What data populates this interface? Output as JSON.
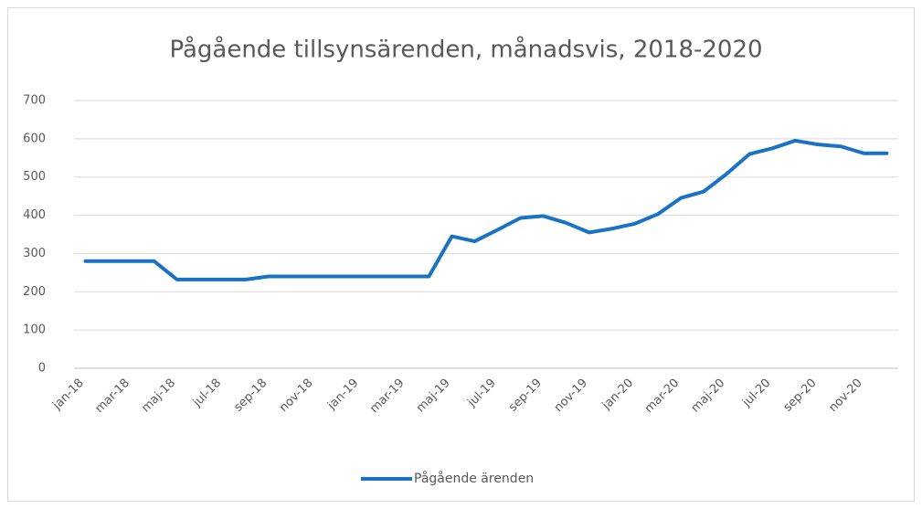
{
  "chart_data": {
    "type": "line",
    "title": "Pågående tillsynsärenden, månadsvis, 2018-2020",
    "categories": [
      "jan-18",
      null,
      "mar-18",
      null,
      "maj-18",
      null,
      "jul-18",
      null,
      "sep-18",
      null,
      "nov-18",
      null,
      "jan-19",
      null,
      "mar-19",
      null,
      "maj-19",
      null,
      "jul-19",
      null,
      "sep-19",
      null,
      "nov-19",
      null,
      "jan-20",
      null,
      "mar-20",
      null,
      "maj-20",
      null,
      "jul-20",
      null,
      "sep-20",
      null,
      "nov-20",
      null
    ],
    "series": [
      {
        "name": "Pågående ärenden",
        "color": "#1a72c4",
        "values": [
          280,
          280,
          280,
          280,
          232,
          232,
          232,
          232,
          240,
          240,
          240,
          240,
          240,
          240,
          240,
          240,
          345,
          332,
          362,
          393,
          398,
          380,
          355,
          365,
          378,
          403,
          445,
          462,
          508,
          560,
          575,
          595,
          585,
          580,
          562,
          562
        ]
      }
    ],
    "ylim": [
      0,
      700
    ],
    "yticks": [
      0,
      100,
      200,
      300,
      400,
      500,
      600,
      700
    ],
    "grid": true,
    "legend": "bottom"
  }
}
